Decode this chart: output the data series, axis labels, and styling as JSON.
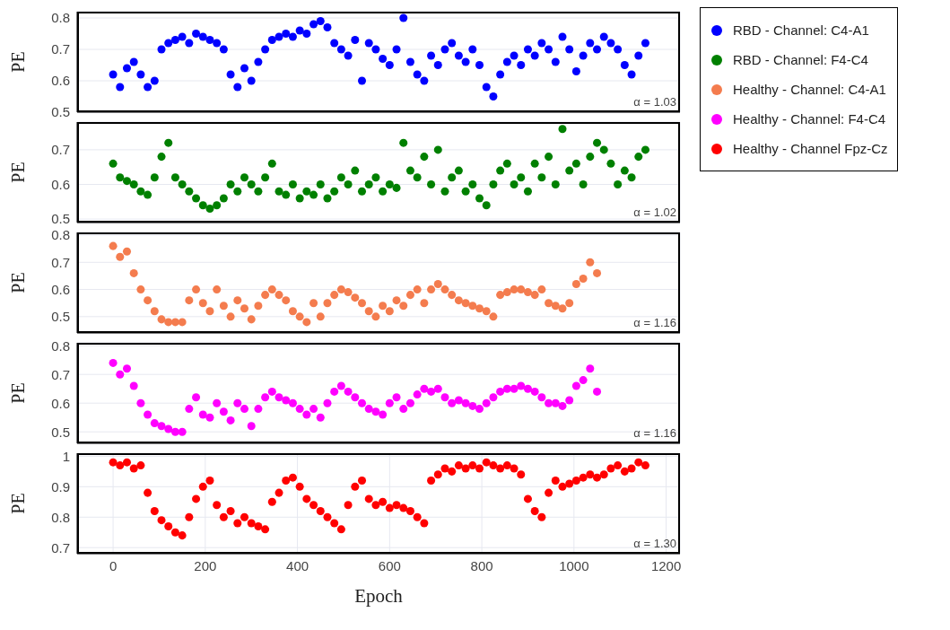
{
  "chart_data": [
    {
      "type": "scatter",
      "ylabel": "PE",
      "annotations": [
        "α = 1.03"
      ],
      "legend": "top right",
      "grid": true,
      "marker": "circle",
      "tick_labels": "y",
      "xlim": [
        -78,
        1230
      ],
      "xticks": [
        0,
        200,
        400,
        600,
        800,
        1000,
        1200
      ],
      "ylim": [
        0.5,
        0.82
      ],
      "yticks": [
        0.5,
        0.6,
        0.7,
        0.8
      ],
      "x": [
        0,
        15,
        30,
        45,
        60,
        75,
        90,
        105,
        120,
        135,
        150,
        165,
        180,
        195,
        210,
        225,
        240,
        255,
        270,
        285,
        300,
        315,
        330,
        345,
        360,
        375,
        390,
        405,
        420,
        435,
        450,
        465,
        480,
        495,
        510,
        525,
        540,
        555,
        570,
        585,
        600,
        615,
        630,
        645,
        660,
        675,
        690,
        705,
        720,
        735,
        750,
        765,
        780,
        795,
        810,
        825,
        840,
        855,
        870,
        885,
        900,
        915,
        930,
        945,
        960,
        975,
        990,
        1005,
        1020,
        1035,
        1050,
        1065,
        1080,
        1095,
        1110,
        1125,
        1140,
        1155
      ],
      "series": [
        {
          "name": "RBD - Channel: C4-A1",
          "color": "#0000ff",
          "values": [
            0.62,
            0.58,
            0.64,
            0.66,
            0.62,
            0.58,
            0.6,
            0.7,
            0.72,
            0.73,
            0.74,
            0.72,
            0.75,
            0.74,
            0.73,
            0.72,
            0.7,
            0.62,
            0.58,
            0.64,
            0.6,
            0.66,
            0.7,
            0.73,
            0.74,
            0.75,
            0.74,
            0.76,
            0.75,
            0.78,
            0.79,
            0.77,
            0.72,
            0.7,
            0.68,
            0.73,
            0.6,
            0.72,
            0.7,
            0.67,
            0.65,
            0.7,
            0.8,
            0.66,
            0.62,
            0.6,
            0.68,
            0.65,
            0.7,
            0.72,
            0.68,
            0.66,
            0.7,
            0.65,
            0.58,
            0.55,
            0.62,
            0.66,
            0.68,
            0.65,
            0.7,
            0.68,
            0.72,
            0.7,
            0.66,
            0.74,
            0.7,
            0.63,
            0.68,
            0.72,
            0.7,
            0.74,
            0.72,
            0.7,
            0.65,
            0.62,
            0.68,
            0.72
          ]
        }
      ]
    },
    {
      "type": "scatter",
      "ylabel": "PE",
      "annotations": [
        "α = 1.02"
      ],
      "legend": "top right",
      "grid": true,
      "marker": "circle",
      "tick_labels": "y",
      "xlim": [
        -78,
        1230
      ],
      "xticks": [
        0,
        200,
        400,
        600,
        800,
        1000,
        1200
      ],
      "ylim": [
        0.49,
        0.78
      ],
      "yticks": [
        0.5,
        0.6,
        0.7
      ],
      "x": [
        0,
        15,
        30,
        45,
        60,
        75,
        90,
        105,
        120,
        135,
        150,
        165,
        180,
        195,
        210,
        225,
        240,
        255,
        270,
        285,
        300,
        315,
        330,
        345,
        360,
        375,
        390,
        405,
        420,
        435,
        450,
        465,
        480,
        495,
        510,
        525,
        540,
        555,
        570,
        585,
        600,
        615,
        630,
        645,
        660,
        675,
        690,
        705,
        720,
        735,
        750,
        765,
        780,
        795,
        810,
        825,
        840,
        855,
        870,
        885,
        900,
        915,
        930,
        945,
        960,
        975,
        990,
        1005,
        1020,
        1035,
        1050,
        1065,
        1080,
        1095,
        1110,
        1125,
        1140,
        1155
      ],
      "series": [
        {
          "name": "RBD - Channel: F4-C4",
          "color": "#008000",
          "values": [
            0.66,
            0.62,
            0.61,
            0.6,
            0.58,
            0.57,
            0.62,
            0.68,
            0.72,
            0.62,
            0.6,
            0.58,
            0.56,
            0.54,
            0.53,
            0.54,
            0.56,
            0.6,
            0.58,
            0.62,
            0.6,
            0.58,
            0.62,
            0.66,
            0.58,
            0.57,
            0.6,
            0.56,
            0.58,
            0.57,
            0.6,
            0.56,
            0.58,
            0.62,
            0.6,
            0.64,
            0.58,
            0.6,
            0.62,
            0.58,
            0.6,
            0.59,
            0.72,
            0.64,
            0.62,
            0.68,
            0.6,
            0.7,
            0.58,
            0.62,
            0.64,
            0.58,
            0.6,
            0.56,
            0.54,
            0.6,
            0.64,
            0.66,
            0.6,
            0.62,
            0.58,
            0.66,
            0.62,
            0.68,
            0.6,
            0.76,
            0.64,
            0.66,
            0.6,
            0.68,
            0.72,
            0.7,
            0.66,
            0.6,
            0.64,
            0.62,
            0.68,
            0.7
          ]
        }
      ]
    },
    {
      "type": "scatter",
      "ylabel": "PE",
      "annotations": [
        "α = 1.16"
      ],
      "legend": "top right",
      "grid": true,
      "marker": "circle",
      "tick_labels": "y",
      "xlim": [
        -78,
        1230
      ],
      "xticks": [
        0,
        200,
        400,
        600,
        800,
        1000,
        1200
      ],
      "ylim": [
        0.44,
        0.81
      ],
      "yticks": [
        0.5,
        0.6,
        0.7,
        0.8
      ],
      "x": [
        0,
        15,
        30,
        45,
        60,
        75,
        90,
        105,
        120,
        135,
        150,
        165,
        180,
        195,
        210,
        225,
        240,
        255,
        270,
        285,
        300,
        315,
        330,
        345,
        360,
        375,
        390,
        405,
        420,
        435,
        450,
        465,
        480,
        495,
        510,
        525,
        540,
        555,
        570,
        585,
        600,
        615,
        630,
        645,
        660,
        675,
        690,
        705,
        720,
        735,
        750,
        765,
        780,
        795,
        810,
        825,
        840,
        855,
        870,
        885,
        900,
        915,
        930,
        945,
        960,
        975,
        990,
        1005,
        1020,
        1035,
        1050
      ],
      "series": [
        {
          "name": "Healthy - Channel: C4-A1",
          "color": "#f47c4e",
          "values": [
            0.76,
            0.72,
            0.74,
            0.66,
            0.6,
            0.56,
            0.52,
            0.49,
            0.48,
            0.48,
            0.48,
            0.56,
            0.6,
            0.55,
            0.52,
            0.6,
            0.54,
            0.5,
            0.56,
            0.53,
            0.49,
            0.54,
            0.58,
            0.6,
            0.58,
            0.56,
            0.52,
            0.5,
            0.48,
            0.55,
            0.5,
            0.55,
            0.58,
            0.6,
            0.59,
            0.57,
            0.55,
            0.52,
            0.5,
            0.54,
            0.52,
            0.56,
            0.54,
            0.58,
            0.6,
            0.55,
            0.6,
            0.62,
            0.6,
            0.58,
            0.56,
            0.55,
            0.54,
            0.53,
            0.52,
            0.5,
            0.58,
            0.59,
            0.6,
            0.6,
            0.59,
            0.58,
            0.6,
            0.55,
            0.54,
            0.53,
            0.55,
            0.62,
            0.64,
            0.7,
            0.66
          ]
        }
      ]
    },
    {
      "type": "scatter",
      "ylabel": "PE",
      "annotations": [
        "α = 1.16"
      ],
      "legend": "top right",
      "grid": true,
      "marker": "circle",
      "tick_labels": "y",
      "xlim": [
        -78,
        1230
      ],
      "xticks": [
        0,
        200,
        400,
        600,
        800,
        1000,
        1200
      ],
      "ylim": [
        0.46,
        0.81
      ],
      "yticks": [
        0.5,
        0.6,
        0.7,
        0.8
      ],
      "x": [
        0,
        15,
        30,
        45,
        60,
        75,
        90,
        105,
        120,
        135,
        150,
        165,
        180,
        195,
        210,
        225,
        240,
        255,
        270,
        285,
        300,
        315,
        330,
        345,
        360,
        375,
        390,
        405,
        420,
        435,
        450,
        465,
        480,
        495,
        510,
        525,
        540,
        555,
        570,
        585,
        600,
        615,
        630,
        645,
        660,
        675,
        690,
        705,
        720,
        735,
        750,
        765,
        780,
        795,
        810,
        825,
        840,
        855,
        870,
        885,
        900,
        915,
        930,
        945,
        960,
        975,
        990,
        1005,
        1020,
        1035,
        1050
      ],
      "series": [
        {
          "name": "Healthy - Channel: F4-C4",
          "color": "#ff00ff",
          "values": [
            0.74,
            0.7,
            0.72,
            0.66,
            0.6,
            0.56,
            0.53,
            0.52,
            0.51,
            0.5,
            0.5,
            0.58,
            0.62,
            0.56,
            0.55,
            0.6,
            0.57,
            0.54,
            0.6,
            0.58,
            0.52,
            0.58,
            0.62,
            0.64,
            0.62,
            0.61,
            0.6,
            0.58,
            0.56,
            0.58,
            0.55,
            0.6,
            0.64,
            0.66,
            0.64,
            0.62,
            0.6,
            0.58,
            0.57,
            0.56,
            0.6,
            0.62,
            0.58,
            0.6,
            0.63,
            0.65,
            0.64,
            0.65,
            0.62,
            0.6,
            0.61,
            0.6,
            0.59,
            0.58,
            0.6,
            0.62,
            0.64,
            0.65,
            0.65,
            0.66,
            0.65,
            0.64,
            0.62,
            0.6,
            0.6,
            0.59,
            0.61,
            0.66,
            0.68,
            0.72,
            0.64
          ]
        }
      ]
    },
    {
      "type": "scatter",
      "ylabel": "PE",
      "xlabel": "Epoch",
      "annotations": [
        "α = 1.30"
      ],
      "legend": "top right",
      "grid": true,
      "marker": "circle",
      "xlim": [
        -78,
        1230
      ],
      "xticks": [
        0,
        200,
        400,
        600,
        800,
        1000,
        1200
      ],
      "ylim": [
        0.68,
        1.01
      ],
      "yticks": [
        0.7,
        0.8,
        0.9,
        1
      ],
      "x": [
        0,
        15,
        30,
        45,
        60,
        75,
        90,
        105,
        120,
        135,
        150,
        165,
        180,
        195,
        210,
        225,
        240,
        255,
        270,
        285,
        300,
        315,
        330,
        345,
        360,
        375,
        390,
        405,
        420,
        435,
        450,
        465,
        480,
        495,
        510,
        525,
        540,
        555,
        570,
        585,
        600,
        615,
        630,
        645,
        660,
        675,
        690,
        705,
        720,
        735,
        750,
        765,
        780,
        795,
        810,
        825,
        840,
        855,
        870,
        885,
        900,
        915,
        930,
        945,
        960,
        975,
        990,
        1005,
        1020,
        1035,
        1050,
        1065,
        1080,
        1095,
        1110,
        1125,
        1140,
        1155
      ],
      "series": [
        {
          "name": "Healthy - Channel Fpz-Cz",
          "color": "#ff0000",
          "values": [
            0.98,
            0.97,
            0.98,
            0.96,
            0.97,
            0.88,
            0.82,
            0.79,
            0.77,
            0.75,
            0.74,
            0.8,
            0.86,
            0.9,
            0.92,
            0.84,
            0.8,
            0.82,
            0.78,
            0.8,
            0.78,
            0.77,
            0.76,
            0.85,
            0.88,
            0.92,
            0.93,
            0.9,
            0.86,
            0.84,
            0.82,
            0.8,
            0.78,
            0.76,
            0.84,
            0.9,
            0.92,
            0.86,
            0.84,
            0.85,
            0.83,
            0.84,
            0.83,
            0.82,
            0.8,
            0.78,
            0.92,
            0.94,
            0.96,
            0.95,
            0.97,
            0.96,
            0.97,
            0.96,
            0.98,
            0.97,
            0.96,
            0.97,
            0.96,
            0.94,
            0.86,
            0.82,
            0.8,
            0.88,
            0.92,
            0.9,
            0.91,
            0.92,
            0.93,
            0.94,
            0.93,
            0.94,
            0.96,
            0.97,
            0.95,
            0.96,
            0.98,
            0.97
          ]
        }
      ]
    }
  ]
}
